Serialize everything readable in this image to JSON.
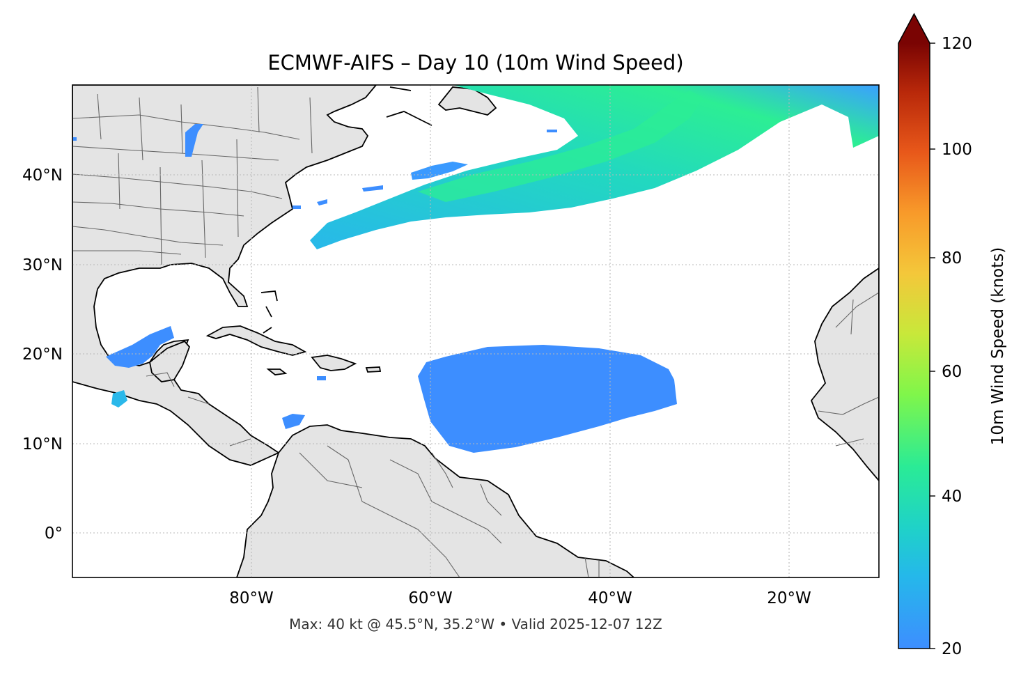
{
  "map": {
    "title": "ECMWF-AIFS – Day 10 (10m Wind Speed)",
    "footer": "Max: 40 kt @ 45.5°N, 35.2°W • Valid 2025-12-07 12Z",
    "lon_ticks": [
      "80°W",
      "60°W",
      "40°W",
      "20°W"
    ],
    "lat_ticks": [
      "40°N",
      "30°N",
      "20°N",
      "10°N",
      "0°"
    ],
    "extent": {
      "lon": [
        -100,
        -10
      ],
      "lat": [
        -5,
        50
      ]
    },
    "gridlines": true,
    "land_color": "#e4e4e4",
    "coastline_color": "#000000",
    "border_color": "#666666"
  },
  "colorbar": {
    "label": "10m Wind Speed (knots)",
    "ticks": [
      "120",
      "100",
      "80",
      "60",
      "40",
      "20"
    ],
    "range": [
      20,
      120
    ],
    "extend": "max",
    "colormap": "turbo",
    "colors": [
      "#3d8eff",
      "#1fc8dc",
      "#2aeb96",
      "#a8f43a",
      "#f4c73a",
      "#f57a1d",
      "#c8320a",
      "#7a0403"
    ]
  },
  "wind_features": [
    {
      "name": "north-atlantic-jet",
      "max_kt": 40,
      "max_lat": 45.5,
      "max_lon": -35.2
    },
    {
      "name": "tropical-trade-wind-area",
      "approx_kt": 22
    },
    {
      "name": "gulf-of-mexico-patch",
      "approx_kt": 24
    },
    {
      "name": "lake-michigan-patch",
      "approx_kt": 24
    },
    {
      "name": "eastern-pacific-patch",
      "approx_kt": 26
    },
    {
      "name": "caribbean-patch",
      "approx_kt": 21
    }
  ]
}
